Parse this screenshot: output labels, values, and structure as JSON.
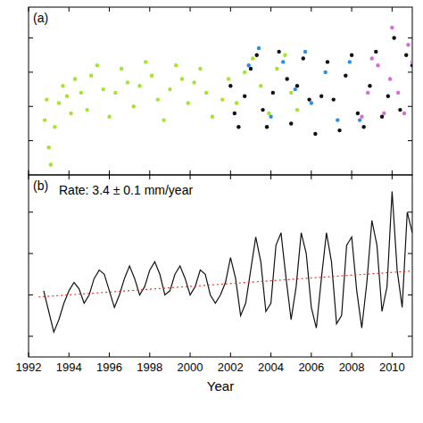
{
  "chart_data": [
    {
      "type": "scatter",
      "title": "(a)",
      "xlim": [
        1992,
        2011
      ],
      "xticks": [
        1992,
        1994,
        1996,
        1998,
        2000,
        2002,
        2004,
        2006,
        2008,
        2010
      ],
      "ylim": [
        -200,
        290
      ],
      "yticks": [
        -100,
        0,
        100,
        200
      ],
      "tick_labels": false,
      "series": [
        {
          "color": "#a6e22e",
          "marker": "circle",
          "x": [
            1992.8,
            1992.9,
            1993.0,
            1993.1,
            1993.3,
            1993.5,
            1993.7,
            1993.9,
            1994.1,
            1994.3,
            1994.6,
            1994.9,
            1995.1,
            1995.4,
            1995.7,
            1996.0,
            1996.3,
            1996.6,
            1996.9,
            1997.2,
            1997.5,
            1997.8,
            1998.1,
            1998.4,
            1998.7,
            1999.0,
            1999.3,
            1999.6,
            1999.9,
            2000.2,
            2000.5,
            2000.8,
            2001.1,
            2001.6,
            2001.9,
            2002.3,
            2002.7,
            2003.1,
            2003.5,
            2003.9,
            2004.3,
            2004.7,
            2005.0,
            2005.3
          ],
          "values": [
            -40,
            20,
            -120,
            -170,
            -60,
            10,
            60,
            30,
            -20,
            80,
            40,
            -10,
            90,
            120,
            50,
            -30,
            40,
            110,
            70,
            0,
            60,
            130,
            90,
            20,
            -40,
            50,
            120,
            80,
            10,
            70,
            110,
            40,
            -30,
            20,
            80,
            10,
            100,
            140,
            60,
            -20,
            110,
            150,
            40,
            -10
          ]
        },
        {
          "color": "#111111",
          "marker": "circle",
          "x": [
            2002.0,
            2002.2,
            2002.4,
            2002.7,
            2003.0,
            2003.3,
            2003.6,
            2003.8,
            2004.1,
            2004.4,
            2004.8,
            2005.0,
            2005.3,
            2005.6,
            2005.9,
            2006.2,
            2006.5,
            2006.8,
            2007.1,
            2007.4,
            2007.7,
            2008.0,
            2008.3,
            2008.6,
            2008.9,
            2009.2,
            2009.5,
            2009.8,
            2010.1,
            2010.4,
            2010.7,
            2011.0
          ],
          "values": [
            60,
            -20,
            -60,
            30,
            110,
            150,
            -10,
            -60,
            40,
            160,
            80,
            -50,
            60,
            140,
            20,
            -80,
            30,
            130,
            20,
            -70,
            90,
            150,
            -20,
            -60,
            60,
            160,
            -30,
            30,
            200,
            -10,
            150,
            120
          ]
        },
        {
          "color": "#2a8ee8",
          "marker": "circle",
          "x": [
            2002.9,
            2003.4,
            2004.0,
            2004.6,
            2005.2,
            2005.7,
            2006.0,
            2006.7,
            2007.3,
            2007.9,
            2008.4
          ],
          "values": [
            120,
            170,
            -30,
            130,
            50,
            160,
            10,
            100,
            -40,
            130,
            -40
          ]
        },
        {
          "color": "#d96ad9",
          "marker": "circle",
          "x": [
            2008.5,
            2008.8,
            2009.0,
            2009.3,
            2009.6,
            2009.9,
            2010.0,
            2010.3,
            2010.6,
            2010.8,
            2011.0
          ],
          "values": [
            -30,
            40,
            140,
            120,
            -20,
            80,
            230,
            40,
            -20,
            180,
            130
          ]
        }
      ]
    },
    {
      "type": "line",
      "title": "(b)",
      "annotation": "Rate: 3.4 ± 0.1 mm/year",
      "x_label": "Year",
      "xlim": [
        1992,
        2011
      ],
      "xticks": [
        1992,
        1994,
        1996,
        1998,
        2000,
        2002,
        2004,
        2006,
        2008,
        2010
      ],
      "ylim": [
        -150,
        290
      ],
      "yticks": [
        -100,
        0,
        100,
        200
      ],
      "tick_labels": "x",
      "series": [
        {
          "color": "#111111",
          "line_style": "solid",
          "x": [
            1992.75,
            1993.0,
            1993.25,
            1993.5,
            1993.75,
            1994.0,
            1994.25,
            1994.5,
            1994.75,
            1995.0,
            1995.25,
            1995.5,
            1995.75,
            1996.0,
            1996.25,
            1996.5,
            1996.75,
            1997.0,
            1997.25,
            1997.5,
            1997.75,
            1998.0,
            1998.25,
            1998.5,
            1998.75,
            1999.0,
            1999.25,
            1999.5,
            1999.75,
            2000.0,
            2000.25,
            2000.5,
            2000.75,
            2001.0,
            2001.25,
            2001.5,
            2001.75,
            2002.0,
            2002.25,
            2002.5,
            2002.75,
            2003.0,
            2003.25,
            2003.5,
            2003.75,
            2004.0,
            2004.25,
            2004.5,
            2004.75,
            2005.0,
            2005.25,
            2005.5,
            2005.75,
            2006.0,
            2006.25,
            2006.5,
            2006.75,
            2007.0,
            2007.25,
            2007.5,
            2007.75,
            2008.0,
            2008.25,
            2008.5,
            2008.75,
            2009.0,
            2009.25,
            2009.5,
            2009.75,
            2010.0,
            2010.25,
            2010.5,
            2010.75,
            2011.0
          ],
          "values": [
            10,
            -40,
            -90,
            -60,
            -20,
            10,
            30,
            15,
            -20,
            0,
            40,
            60,
            50,
            10,
            -30,
            0,
            40,
            70,
            40,
            0,
            20,
            60,
            80,
            50,
            0,
            10,
            50,
            70,
            40,
            0,
            20,
            60,
            50,
            0,
            -20,
            0,
            30,
            90,
            40,
            -50,
            -20,
            60,
            140,
            80,
            -40,
            -20,
            120,
            150,
            40,
            -60,
            20,
            150,
            100,
            -30,
            -80,
            40,
            150,
            80,
            -70,
            -50,
            120,
            140,
            10,
            -80,
            30,
            180,
            120,
            -40,
            20,
            250,
            60,
            -30,
            200,
            150
          ]
        },
        {
          "color": "#e8302a",
          "line_style": "dotted",
          "x": [
            1992.5,
            2011.0
          ],
          "values": [
            -5,
            57.9
          ]
        }
      ]
    }
  ]
}
